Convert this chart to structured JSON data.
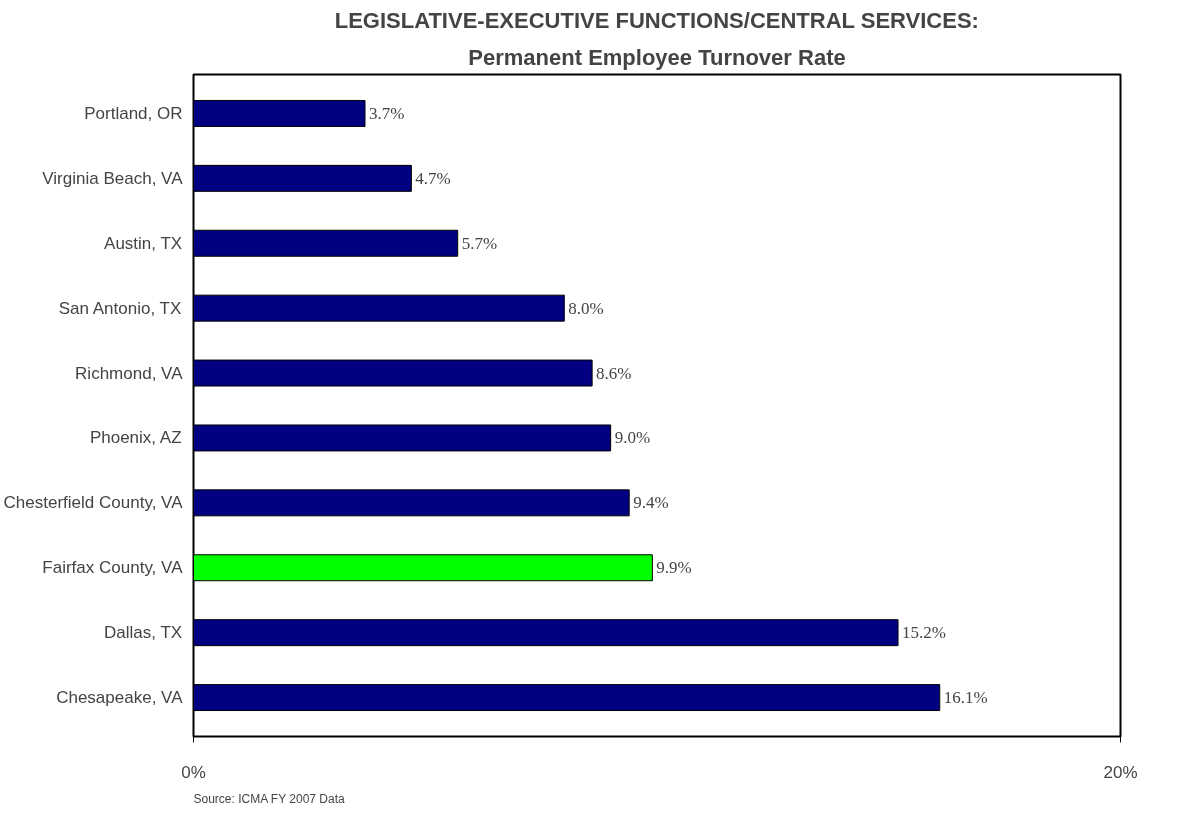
{
  "chart_data": {
    "type": "bar",
    "orientation": "horizontal",
    "title": "LEGISLATIVE-EXECUTIVE FUNCTIONS/CENTRAL SERVICES:",
    "subtitle": "Permanent Employee Turnover Rate",
    "categories": [
      "Portland, OR",
      "Virginia Beach, VA",
      "Austin, TX",
      "San Antonio, TX",
      "Richmond, VA",
      "Phoenix, AZ",
      "Chesterfield County, VA",
      "Fairfax County, VA",
      "Dallas, TX",
      "Chesapeake, VA"
    ],
    "values": [
      3.7,
      4.7,
      5.7,
      8.0,
      8.6,
      9.0,
      9.4,
      9.9,
      15.2,
      16.1
    ],
    "value_labels": [
      "3.7%",
      "4.7%",
      "5.7%",
      "8.0%",
      "8.6%",
      "9.0%",
      "9.4%",
      "9.9%",
      "15.2%",
      "16.1%"
    ],
    "colors": [
      "#000080",
      "#000080",
      "#000080",
      "#000080",
      "#000080",
      "#000080",
      "#000080",
      "#00ff00",
      "#000080",
      "#000080"
    ],
    "xlim": [
      0,
      20
    ],
    "xticks": [
      {
        "value": 0,
        "label": "0%"
      },
      {
        "value": 20,
        "label": "20%"
      }
    ],
    "annotations": [
      "Source: ICMA FY 2007 Data"
    ],
    "grid": false
  }
}
